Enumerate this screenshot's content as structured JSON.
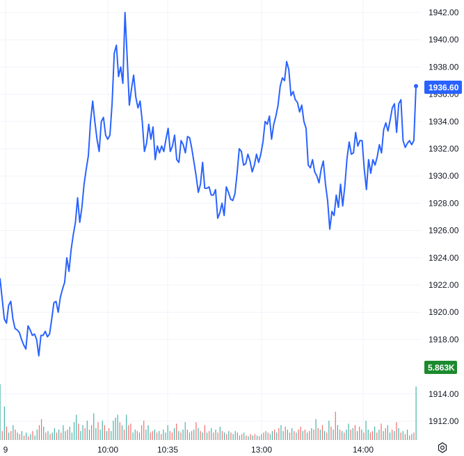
{
  "chart_data": {
    "type": "line",
    "y_ticks": [
      "1942.00",
      "1940.00",
      "1938.00",
      "1936.00",
      "1934.00",
      "1932.00",
      "1930.00",
      "1928.00",
      "1926.00",
      "1924.00",
      "1922.00",
      "1920.00",
      "1918.00",
      "1914.00",
      "1912.00"
    ],
    "x_ticks": [
      "9",
      "10:00",
      "10:35",
      "13:00",
      "14:00"
    ],
    "ylim": [
      1911.0,
      1943.0
    ],
    "price_label": "1936.60",
    "volume_label": "5.863K",
    "colors": {
      "line": "#2962ff",
      "volume_up": "#26a69a",
      "volume_down": "#ef5350",
      "price_badge": "#2962ff",
      "volume_badge": "#1b8a2e",
      "grid": "#f0f3fa"
    },
    "series": [
      {
        "values": [
          1922.5,
          1921.0,
          1919.5,
          1919.2,
          1920.5,
          1920.8,
          1919.5,
          1918.8,
          1918.7,
          1918.5,
          1918.0,
          1917.6,
          1917.3,
          1919.0,
          1918.7,
          1918.3,
          1918.4,
          1918.0,
          1916.8,
          1918.3,
          1918.3,
          1918.6,
          1918.2,
          1918.4,
          1919.5,
          1920.7,
          1920.8,
          1920.0,
          1921.1,
          1921.7,
          1922.2,
          1924.0,
          1923.0,
          1924.6,
          1925.7,
          1926.6,
          1928.4,
          1926.6,
          1927.7,
          1929.4,
          1930.5,
          1931.5,
          1934.0,
          1935.5,
          1934.0,
          1932.7,
          1931.8,
          1934.0,
          1934.3,
          1933.0,
          1932.7,
          1933.0,
          1935.3,
          1939.0,
          1939.6,
          1937.3,
          1938.0,
          1936.8,
          1942.0,
          1938.7,
          1935.2,
          1936.4,
          1937.4,
          1935.8,
          1935.0,
          1935.5,
          1934.0,
          1931.8,
          1932.4,
          1933.8,
          1932.7,
          1933.6,
          1931.2,
          1932.2,
          1931.7,
          1932.2,
          1931.8,
          1932.7,
          1933.5,
          1931.8,
          1932.2,
          1933.0,
          1931.2,
          1931.0,
          1932.6,
          1932.3,
          1931.7,
          1932.9,
          1932.8,
          1932.0,
          1931.0,
          1930.0,
          1928.8,
          1929.4,
          1931.0,
          1929.1,
          1929.1,
          1929.2,
          1928.6,
          1928.6,
          1929.0,
          1926.9,
          1927.3,
          1928.0,
          1927.1,
          1929.2,
          1928.8,
          1928.3,
          1928.2,
          1928.7,
          1930.2,
          1932.0,
          1931.8,
          1930.8,
          1930.9,
          1931.6,
          1931.1,
          1930.3,
          1930.8,
          1931.6,
          1931.0,
          1931.6,
          1932.5,
          1934.0,
          1933.8,
          1934.4,
          1932.7,
          1933.8,
          1934.4,
          1935.2,
          1936.6,
          1937.2,
          1937.0,
          1938.4,
          1937.8,
          1935.9,
          1936.2,
          1935.6,
          1935.4,
          1934.7,
          1935.2,
          1934.0,
          1933.5,
          1930.8,
          1930.6,
          1931.2,
          1930.3,
          1930.0,
          1929.5,
          1930.5,
          1931.1,
          1929.4,
          1928.2,
          1926.1,
          1927.4,
          1927.1,
          1928.6,
          1927.7,
          1929.4,
          1927.8,
          1929.3,
          1931.3,
          1932.5,
          1931.6,
          1931.7,
          1933.2,
          1932.2,
          1932.6,
          1932.6,
          1930.5,
          1929.0,
          1931.2,
          1930.2,
          1931.2,
          1930.8,
          1931.4,
          1932.3,
          1931.7,
          1933.4,
          1933.9,
          1933.3,
          1934.1,
          1935.0,
          1935.3,
          1933.2,
          1935.3,
          1935.6,
          1932.6,
          1932.1,
          1932.4,
          1932.6,
          1932.3,
          1932.6,
          1936.6
        ]
      }
    ],
    "volumes": [
      [
        0.75,
        "u"
      ],
      [
        0.12,
        "d"
      ],
      [
        0.45,
        "u"
      ],
      [
        0.18,
        "d"
      ],
      [
        0.1,
        "u"
      ],
      [
        0.12,
        "d"
      ],
      [
        0.2,
        "u"
      ],
      [
        0.14,
        "d"
      ],
      [
        0.1,
        "u"
      ],
      [
        0.08,
        "d"
      ],
      [
        0.12,
        "u"
      ],
      [
        0.06,
        "d"
      ],
      [
        0.1,
        "u"
      ],
      [
        0.05,
        "d"
      ],
      [
        0.08,
        "u"
      ],
      [
        0.12,
        "d"
      ],
      [
        0.06,
        "u"
      ],
      [
        0.14,
        "u"
      ],
      [
        0.2,
        "d"
      ],
      [
        0.28,
        "d"
      ],
      [
        0.18,
        "u"
      ],
      [
        0.1,
        "d"
      ],
      [
        0.12,
        "u"
      ],
      [
        0.08,
        "d"
      ],
      [
        0.1,
        "u"
      ],
      [
        0.16,
        "u"
      ],
      [
        0.1,
        "d"
      ],
      [
        0.14,
        "u"
      ],
      [
        0.1,
        "d"
      ],
      [
        0.2,
        "u"
      ],
      [
        0.12,
        "u"
      ],
      [
        0.14,
        "d"
      ],
      [
        0.18,
        "u"
      ],
      [
        0.1,
        "u"
      ],
      [
        0.24,
        "u"
      ],
      [
        0.34,
        "u"
      ],
      [
        0.22,
        "d"
      ],
      [
        0.12,
        "u"
      ],
      [
        0.2,
        "u"
      ],
      [
        0.16,
        "d"
      ],
      [
        0.26,
        "u"
      ],
      [
        0.14,
        "u"
      ],
      [
        0.2,
        "d"
      ],
      [
        0.36,
        "u"
      ],
      [
        0.16,
        "u"
      ],
      [
        0.24,
        "d"
      ],
      [
        0.14,
        "u"
      ],
      [
        0.26,
        "u"
      ],
      [
        0.2,
        "d"
      ],
      [
        0.12,
        "u"
      ],
      [
        0.16,
        "d"
      ],
      [
        0.12,
        "u"
      ],
      [
        0.26,
        "u"
      ],
      [
        0.3,
        "u"
      ],
      [
        0.34,
        "u"
      ],
      [
        0.24,
        "d"
      ],
      [
        0.2,
        "u"
      ],
      [
        0.14,
        "d"
      ],
      [
        0.34,
        "u"
      ],
      [
        0.2,
        "d"
      ],
      [
        0.22,
        "d"
      ],
      [
        0.1,
        "u"
      ],
      [
        0.14,
        "u"
      ],
      [
        0.12,
        "d"
      ],
      [
        0.1,
        "u"
      ],
      [
        0.2,
        "d"
      ],
      [
        0.26,
        "d"
      ],
      [
        0.14,
        "u"
      ],
      [
        0.2,
        "u"
      ],
      [
        0.1,
        "d"
      ],
      [
        0.12,
        "d"
      ],
      [
        0.14,
        "u"
      ],
      [
        0.1,
        "d"
      ],
      [
        0.12,
        "u"
      ],
      [
        0.08,
        "d"
      ],
      [
        0.14,
        "u"
      ],
      [
        0.1,
        "u"
      ],
      [
        0.2,
        "u"
      ],
      [
        0.12,
        "d"
      ],
      [
        0.1,
        "d"
      ],
      [
        0.16,
        "u"
      ],
      [
        0.22,
        "d"
      ],
      [
        0.12,
        "u"
      ],
      [
        0.1,
        "d"
      ],
      [
        0.14,
        "u"
      ],
      [
        0.24,
        "u"
      ],
      [
        0.14,
        "d"
      ],
      [
        0.1,
        "u"
      ],
      [
        0.12,
        "d"
      ],
      [
        0.14,
        "u"
      ],
      [
        0.24,
        "d"
      ],
      [
        0.16,
        "u"
      ],
      [
        0.12,
        "d"
      ],
      [
        0.1,
        "u"
      ],
      [
        0.2,
        "d"
      ],
      [
        0.1,
        "u"
      ],
      [
        0.12,
        "d"
      ],
      [
        0.16,
        "u"
      ],
      [
        0.1,
        "d"
      ],
      [
        0.14,
        "u"
      ],
      [
        0.1,
        "d"
      ],
      [
        0.18,
        "u"
      ],
      [
        0.12,
        "d"
      ],
      [
        0.1,
        "u"
      ],
      [
        0.08,
        "d"
      ],
      [
        0.12,
        "u"
      ],
      [
        0.1,
        "d"
      ],
      [
        0.08,
        "u"
      ],
      [
        0.12,
        "u"
      ],
      [
        0.1,
        "d"
      ],
      [
        0.06,
        "u"
      ],
      [
        0.08,
        "d"
      ],
      [
        0.1,
        "u"
      ],
      [
        0.06,
        "d"
      ],
      [
        0.05,
        "u"
      ],
      [
        0.08,
        "d"
      ],
      [
        0.06,
        "u"
      ],
      [
        0.08,
        "d"
      ],
      [
        0.06,
        "u"
      ],
      [
        0.05,
        "d"
      ],
      [
        0.08,
        "u"
      ],
      [
        0.1,
        "d"
      ],
      [
        0.12,
        "u"
      ],
      [
        0.1,
        "d"
      ],
      [
        0.08,
        "u"
      ],
      [
        0.12,
        "u"
      ],
      [
        0.14,
        "d"
      ],
      [
        0.1,
        "u"
      ],
      [
        0.16,
        "d"
      ],
      [
        0.2,
        "u"
      ],
      [
        0.12,
        "u"
      ],
      [
        0.18,
        "d"
      ],
      [
        0.14,
        "u"
      ],
      [
        0.1,
        "d"
      ],
      [
        0.16,
        "u"
      ],
      [
        0.12,
        "d"
      ],
      [
        0.1,
        "u"
      ],
      [
        0.14,
        "d"
      ],
      [
        0.18,
        "d"
      ],
      [
        0.12,
        "u"
      ],
      [
        0.14,
        "d"
      ],
      [
        0.1,
        "u"
      ],
      [
        0.12,
        "d"
      ],
      [
        0.16,
        "u"
      ],
      [
        0.14,
        "d"
      ],
      [
        0.28,
        "u"
      ],
      [
        0.16,
        "d"
      ],
      [
        0.14,
        "u"
      ],
      [
        0.2,
        "d"
      ],
      [
        0.12,
        "u"
      ],
      [
        0.1,
        "d"
      ],
      [
        0.26,
        "u"
      ],
      [
        0.18,
        "d"
      ],
      [
        0.14,
        "u"
      ],
      [
        0.38,
        "d"
      ],
      [
        0.2,
        "u"
      ],
      [
        0.14,
        "d"
      ],
      [
        0.12,
        "u"
      ],
      [
        0.1,
        "d"
      ],
      [
        0.14,
        "u"
      ],
      [
        0.22,
        "u"
      ],
      [
        0.14,
        "d"
      ],
      [
        0.16,
        "u"
      ],
      [
        0.2,
        "d"
      ],
      [
        0.12,
        "u"
      ],
      [
        0.18,
        "d"
      ],
      [
        0.14,
        "u"
      ],
      [
        0.1,
        "d"
      ],
      [
        0.26,
        "u"
      ],
      [
        0.14,
        "u"
      ],
      [
        0.1,
        "d"
      ],
      [
        0.12,
        "d"
      ],
      [
        0.18,
        "u"
      ],
      [
        0.1,
        "d"
      ],
      [
        0.14,
        "u"
      ],
      [
        0.22,
        "d"
      ],
      [
        0.12,
        "u"
      ],
      [
        0.16,
        "d"
      ],
      [
        0.2,
        "u"
      ],
      [
        0.1,
        "u"
      ],
      [
        0.14,
        "d"
      ],
      [
        0.12,
        "u"
      ],
      [
        0.24,
        "d"
      ],
      [
        0.16,
        "u"
      ],
      [
        0.1,
        "d"
      ],
      [
        0.12,
        "u"
      ],
      [
        0.08,
        "d"
      ],
      [
        0.14,
        "u"
      ],
      [
        0.06,
        "d"
      ],
      [
        0.08,
        "u"
      ],
      [
        0.1,
        "d"
      ],
      [
        0.72,
        "u"
      ]
    ]
  }
}
